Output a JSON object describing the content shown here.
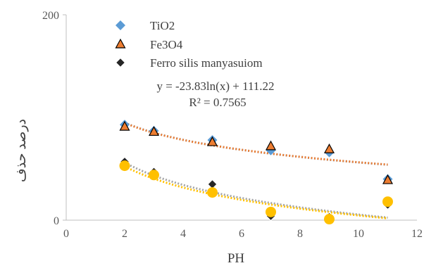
{
  "chart_data": {
    "type": "scatter",
    "xlabel": "PH",
    "ylabel": "درصد حذف",
    "xlim": [
      0,
      12
    ],
    "ylim": [
      0,
      200
    ],
    "xticks": [
      "0",
      "2",
      "4",
      "6",
      "8",
      "10",
      "12"
    ],
    "yticks": [
      "0",
      "200"
    ],
    "grid": false,
    "legend_position": "top-left",
    "series": [
      {
        "name": "TiO2",
        "marker": "diamond",
        "color": "#5B9BD5",
        "x": [
          2,
          3,
          5,
          7,
          9,
          11
        ],
        "y": [
          93,
          87,
          78,
          68,
          66,
          40
        ],
        "trend_color": "#5B9BD5"
      },
      {
        "name": "Fe3O4",
        "marker": "triangle",
        "color": "#ED7D31",
        "x": [
          2,
          3,
          5,
          7,
          9,
          11
        ],
        "y": [
          91,
          86,
          76,
          72,
          69,
          39
        ],
        "trend_color": "#ED7D31"
      },
      {
        "name": "Ferro silis manyasuiom",
        "marker": "diamond-dark",
        "color": "#262626",
        "x": [
          2,
          3,
          5,
          7,
          9,
          11
        ],
        "y": [
          57,
          47,
          35,
          4,
          3,
          15
        ],
        "trend_color": "#A5A5A5"
      },
      {
        "name": "",
        "marker": "circle",
        "color": "#FFC000",
        "x": [
          2,
          3,
          5,
          7,
          9,
          11
        ],
        "y": [
          53,
          44,
          27,
          8,
          1,
          18
        ],
        "trend_color": "#FFC000"
      }
    ],
    "trendlines": [
      {
        "series": 0,
        "type": "log",
        "a": -24.0,
        "b": 111.5
      },
      {
        "series": 1,
        "type": "log",
        "a": -23.83,
        "b": 111.22
      },
      {
        "series": 2,
        "type": "log",
        "a": -31.5,
        "b": 78.0
      },
      {
        "series": 3,
        "type": "log",
        "a": -29.7,
        "b": 73.0
      }
    ],
    "annotations": [
      {
        "text": "y = -23.83ln(x) + 111.22"
      },
      {
        "text": "R² = 0.7565"
      }
    ]
  }
}
